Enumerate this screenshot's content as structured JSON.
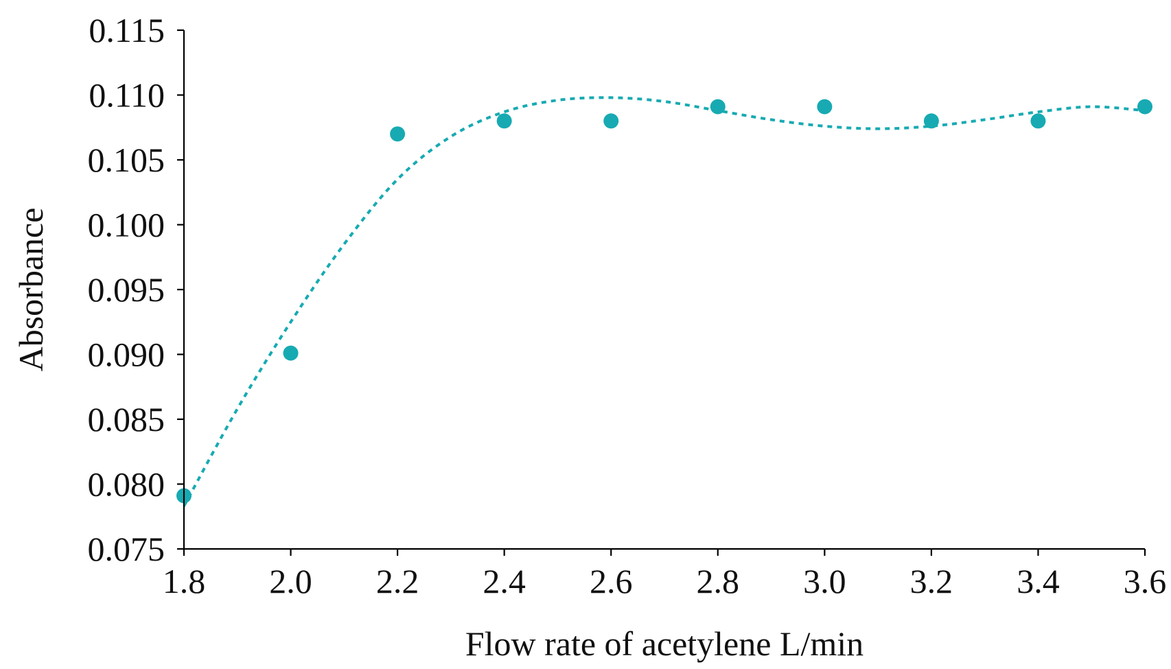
{
  "chart_data": {
    "type": "scatter",
    "title": "",
    "xlabel": "Flow rate of acetylene L/min",
    "ylabel": "Absorbance",
    "xlim": [
      1.8,
      3.6
    ],
    "ylim": [
      0.075,
      0.115
    ],
    "x_ticks": [
      "1.8",
      "2.0",
      "2.2",
      "2.4",
      "2.6",
      "2.8",
      "3.0",
      "3.2",
      "3.4",
      "3.6"
    ],
    "y_ticks": [
      "0.075",
      "0.080",
      "0.085",
      "0.090",
      "0.095",
      "0.100",
      "0.105",
      "0.110",
      "0.115"
    ],
    "grid": false,
    "legend": "none",
    "color": "#17aab2",
    "series": [
      {
        "x": [
          1.8,
          2.0,
          2.2,
          2.4,
          2.6,
          2.8,
          3.0,
          3.2,
          3.4,
          3.6
        ],
        "values": [
          0.0791,
          0.0901,
          0.107,
          0.108,
          0.108,
          0.1091,
          0.1091,
          0.108,
          0.108,
          0.1091
        ]
      }
    ],
    "trendline": {
      "style": "dotted",
      "x": [
        1.8,
        1.9,
        2.0,
        2.1,
        2.2,
        2.3,
        2.4,
        2.5,
        2.6,
        2.7,
        2.8,
        2.9,
        3.0,
        3.1,
        3.2,
        3.3,
        3.4,
        3.5,
        3.6
      ],
      "values": [
        0.0783,
        0.0858,
        0.0925,
        0.0985,
        0.1035,
        0.1068,
        0.1087,
        0.1096,
        0.1098,
        0.1095,
        0.1088,
        0.1081,
        0.1076,
        0.1074,
        0.1076,
        0.1081,
        0.1087,
        0.1091,
        0.1088
      ]
    }
  }
}
